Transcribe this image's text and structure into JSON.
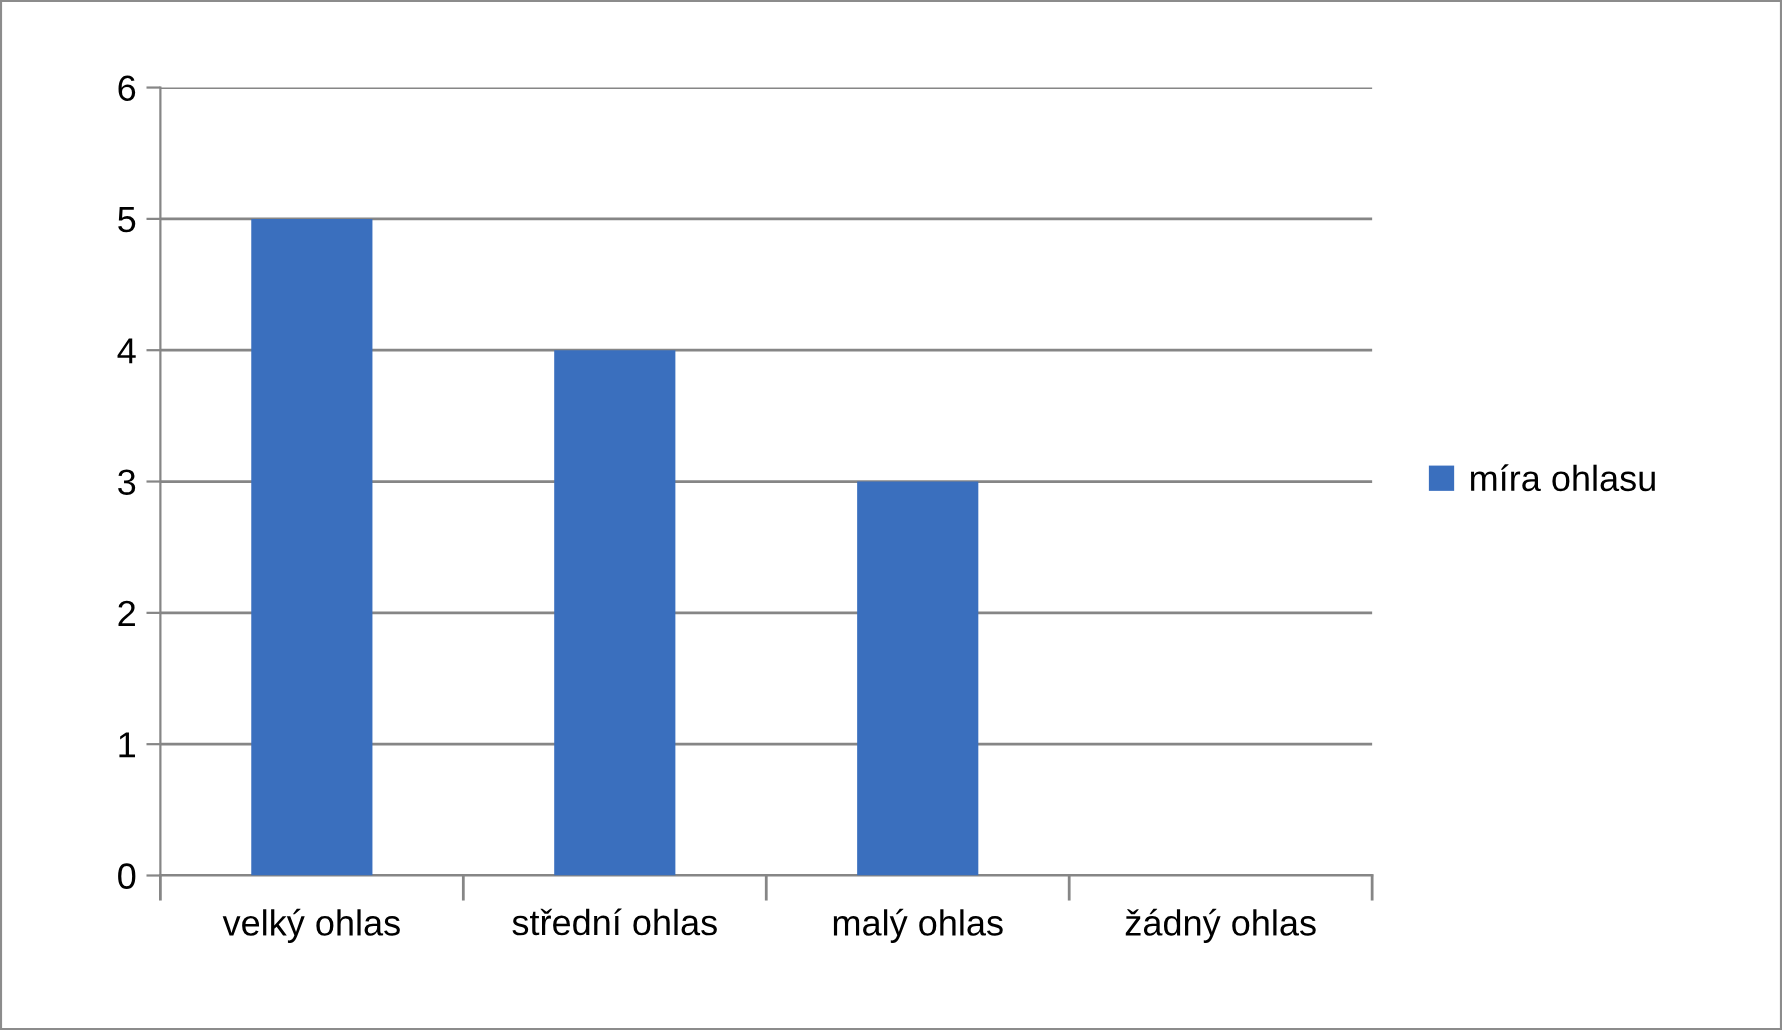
{
  "chart_data": {
    "type": "bar",
    "categories": [
      "velký ohlas",
      "střední ohlas",
      "malý ohlas",
      "žádný ohlas"
    ],
    "series": [
      {
        "name": "míra ohlasu",
        "color": "#3a6fbe",
        "values": [
          5,
          4,
          3,
          0
        ]
      }
    ],
    "ylim": [
      0,
      6
    ],
    "yticks": [
      0,
      1,
      2,
      3,
      4,
      5,
      6
    ],
    "grid": "y",
    "legend": "right"
  }
}
